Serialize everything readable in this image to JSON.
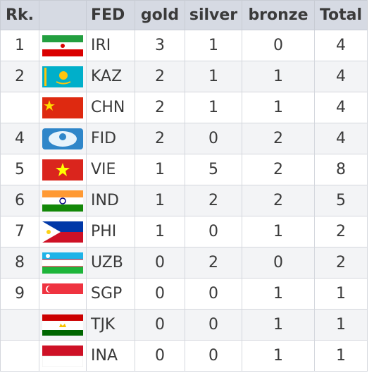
{
  "table": {
    "columns": [
      "Rk.",
      "FED",
      "gold",
      "silver",
      "bronze",
      "Total"
    ],
    "rows": [
      {
        "rank": 1,
        "fed": "IRI",
        "gold": 3,
        "silver": 1,
        "bronze": 0,
        "total": 4
      },
      {
        "rank": 2,
        "fed": "KAZ",
        "gold": 2,
        "silver": 1,
        "bronze": 1,
        "total": 4
      },
      {
        "fed": "CHN",
        "gold": 2,
        "silver": 1,
        "bronze": 1,
        "total": 4
      },
      {
        "rank": 4,
        "fed": "FID",
        "gold": 2,
        "silver": 0,
        "bronze": 2,
        "total": 4
      },
      {
        "rank": 5,
        "fed": "VIE",
        "gold": 1,
        "silver": 5,
        "bronze": 2,
        "total": 8
      },
      {
        "rank": 6,
        "fed": "IND",
        "gold": 1,
        "silver": 2,
        "bronze": 2,
        "total": 5
      },
      {
        "rank": 7,
        "fed": "PHI",
        "gold": 1,
        "silver": 0,
        "bronze": 1,
        "total": 2
      },
      {
        "rank": 8,
        "fed": "UZB",
        "gold": 0,
        "silver": 2,
        "bronze": 0,
        "total": 2
      },
      {
        "rank": 9,
        "fed": "SGP",
        "gold": 0,
        "silver": 0,
        "bronze": 1,
        "total": 1
      },
      {
        "fed": "TJK",
        "gold": 0,
        "silver": 0,
        "bronze": 1,
        "total": 1
      },
      {
        "fed": "INA",
        "gold": 0,
        "silver": 0,
        "bronze": 1,
        "total": 1
      }
    ]
  }
}
